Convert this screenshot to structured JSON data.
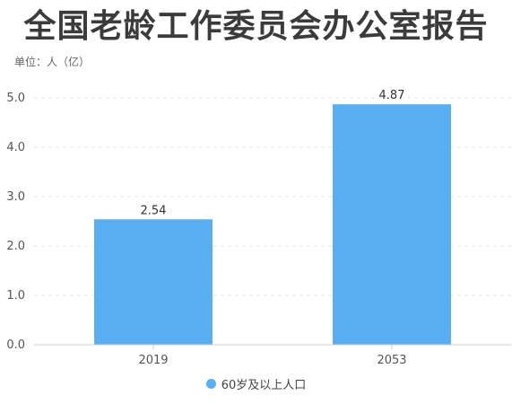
{
  "title": "全国老龄工作委员会办公室报告",
  "unit_label": "单位：人（亿）",
  "colors": {
    "bar": "#5aaef2",
    "axis": "#cccccc",
    "grid": "#e6e6e6",
    "text": "#555555"
  },
  "chart_data": {
    "type": "bar",
    "categories": [
      "2019",
      "2053"
    ],
    "series": [
      {
        "name": "60岁及以上人口",
        "values": [
          2.54,
          4.87
        ]
      }
    ],
    "data_labels": [
      "2.54",
      "4.87"
    ],
    "ylim": [
      0,
      5
    ],
    "yticks": [
      "0.0",
      "1.0",
      "2.0",
      "3.0",
      "4.0",
      "5.0"
    ],
    "grid": true,
    "legend": "bottom-center"
  }
}
